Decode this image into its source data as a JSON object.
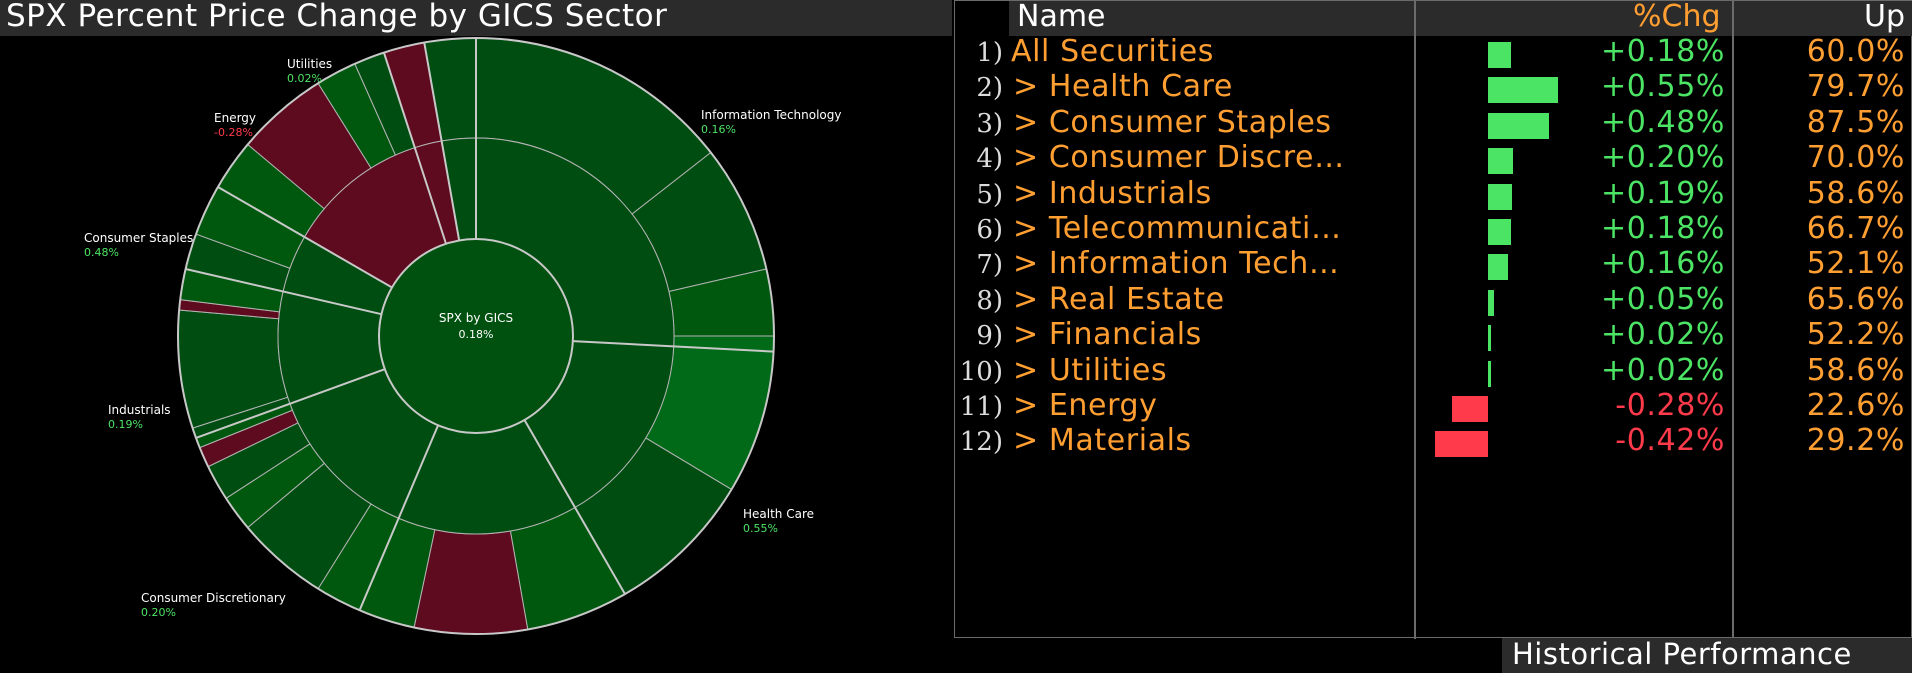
{
  "title": "SPX Percent Price Change by GICS Sector",
  "center": {
    "label": "SPX by GICS",
    "value": "0.18%"
  },
  "colors": {
    "positive": "#4ce464",
    "negative": "#ff3a4a",
    "orange": "#ff9f32"
  },
  "chart_data": {
    "type": "sunburst",
    "center": {
      "name": "SPX by GICS",
      "value": 0.18
    },
    "sectors": [
      {
        "name": "Information Technology",
        "value": 0.16
      },
      {
        "name": "Health Care",
        "value": 0.55
      },
      {
        "name": "Consumer Discretionary",
        "value": 0.2
      },
      {
        "name": "Industrials",
        "value": 0.19
      },
      {
        "name": "Consumer Staples",
        "value": 0.48
      },
      {
        "name": "Energy",
        "value": -0.28
      },
      {
        "name": "Utilities",
        "value": 0.02
      }
    ]
  },
  "labels": [
    {
      "name": "Information Technology",
      "value": "0.16%",
      "positive": true
    },
    {
      "name": "Health Care",
      "value": "0.55%",
      "positive": true
    },
    {
      "name": "Consumer Discretionary",
      "value": "0.20%",
      "positive": true
    },
    {
      "name": "Industrials",
      "value": "0.19%",
      "positive": true
    },
    {
      "name": "Consumer Staples",
      "value": "0.48%",
      "positive": true
    },
    {
      "name": "Energy",
      "value": "-0.28%",
      "positive": false
    },
    {
      "name": "Utilities",
      "value": "0.02%",
      "positive": true
    }
  ],
  "table": {
    "headers": {
      "name": "Name",
      "chg": "%Chg",
      "up": "Up"
    },
    "rows": [
      {
        "num": "1)",
        "name": "All Securities",
        "chg": "+0.18%",
        "up": "60.0%",
        "value": 0.18
      },
      {
        "num": "2)",
        "name": "> Health Care",
        "chg": "+0.55%",
        "up": "79.7%",
        "value": 0.55
      },
      {
        "num": "3)",
        "name": "> Consumer Staples",
        "chg": "+0.48%",
        "up": "87.5%",
        "value": 0.48
      },
      {
        "num": "4)",
        "name": "> Consumer Discre…",
        "chg": "+0.20%",
        "up": "70.0%",
        "value": 0.2
      },
      {
        "num": "5)",
        "name": "> Industrials",
        "chg": "+0.19%",
        "up": "58.6%",
        "value": 0.19
      },
      {
        "num": "6)",
        "name": "> Telecommunicati…",
        "chg": "+0.18%",
        "up": "66.7%",
        "value": 0.18
      },
      {
        "num": "7)",
        "name": "> Information Tech…",
        "chg": "+0.16%",
        "up": "52.1%",
        "value": 0.16
      },
      {
        "num": "8)",
        "name": "> Real Estate",
        "chg": "+0.05%",
        "up": "65.6%",
        "value": 0.05
      },
      {
        "num": "9)",
        "name": "> Financials",
        "chg": "+0.02%",
        "up": "52.2%",
        "value": 0.02
      },
      {
        "num": "10)",
        "name": "> Utilities",
        "chg": "+0.02%",
        "up": "58.6%",
        "value": 0.02
      },
      {
        "num": "11)",
        "name": "> Energy",
        "chg": "-0.28%",
        "up": "22.6%",
        "value": -0.28
      },
      {
        "num": "12)",
        "name": "> Materials",
        "chg": "-0.42%",
        "up": "29.2%",
        "value": -0.42
      }
    ]
  },
  "footer": {
    "button_label": "Historical Performance"
  }
}
